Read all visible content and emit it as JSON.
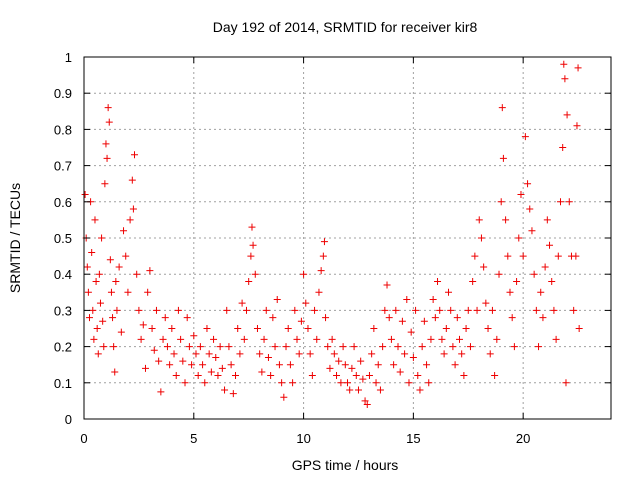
{
  "chart_data": {
    "type": "scatter",
    "title": "Day 192 of 2014, SRMTID for receiver kir8",
    "xlabel": "GPS time / hours",
    "ylabel": "SRMTID / TECUs",
    "xlim": [
      0,
      24
    ],
    "ylim": [
      0,
      1
    ],
    "xticks": [
      0,
      5,
      10,
      15,
      20
    ],
    "xtick_labels": [
      "0",
      "5",
      "10",
      "15",
      "20"
    ],
    "yticks": [
      0,
      0.1,
      0.2,
      0.3,
      0.4,
      0.5,
      0.6,
      0.7,
      0.8,
      0.9,
      1
    ],
    "ytick_labels": [
      "0",
      "0.1",
      "0.2",
      "0.3",
      "0.4",
      "0.5",
      "0.6",
      "0.7",
      "0.8",
      "0.9",
      "1"
    ],
    "grid": true,
    "marker": "+",
    "color": "#ee0000",
    "series": [
      {
        "name": "SRMTID",
        "points": [
          [
            0.05,
            0.62
          ],
          [
            0.1,
            0.5
          ],
          [
            0.15,
            0.42
          ],
          [
            0.2,
            0.35
          ],
          [
            0.25,
            0.28
          ],
          [
            0.3,
            0.6
          ],
          [
            0.35,
            0.46
          ],
          [
            0.4,
            0.3
          ],
          [
            0.45,
            0.22
          ],
          [
            0.5,
            0.55
          ],
          [
            0.55,
            0.38
          ],
          [
            0.6,
            0.25
          ],
          [
            0.65,
            0.18
          ],
          [
            0.7,
            0.4
          ],
          [
            0.75,
            0.32
          ],
          [
            0.8,
            0.5
          ],
          [
            0.85,
            0.27
          ],
          [
            0.9,
            0.2
          ],
          [
            0.95,
            0.65
          ],
          [
            1.0,
            0.76
          ],
          [
            1.05,
            0.72
          ],
          [
            1.1,
            0.86
          ],
          [
            1.15,
            0.82
          ],
          [
            1.2,
            0.44
          ],
          [
            1.25,
            0.35
          ],
          [
            1.3,
            0.28
          ],
          [
            1.35,
            0.2
          ],
          [
            1.4,
            0.13
          ],
          [
            1.45,
            0.38
          ],
          [
            1.5,
            0.3
          ],
          [
            1.6,
            0.42
          ],
          [
            1.7,
            0.24
          ],
          [
            1.8,
            0.52
          ],
          [
            1.9,
            0.45
          ],
          [
            2.0,
            0.35
          ],
          [
            2.1,
            0.55
          ],
          [
            2.2,
            0.66
          ],
          [
            2.25,
            0.58
          ],
          [
            2.3,
            0.73
          ],
          [
            2.4,
            0.4
          ],
          [
            2.5,
            0.3
          ],
          [
            2.6,
            0.22
          ],
          [
            2.7,
            0.26
          ],
          [
            2.8,
            0.14
          ],
          [
            2.9,
            0.35
          ],
          [
            3.0,
            0.41
          ],
          [
            3.1,
            0.25
          ],
          [
            3.2,
            0.19
          ],
          [
            3.3,
            0.3
          ],
          [
            3.4,
            0.16
          ],
          [
            3.5,
            0.075
          ],
          [
            3.6,
            0.22
          ],
          [
            3.7,
            0.28
          ],
          [
            3.8,
            0.2
          ],
          [
            3.9,
            0.15
          ],
          [
            4.0,
            0.25
          ],
          [
            4.1,
            0.18
          ],
          [
            4.2,
            0.12
          ],
          [
            4.3,
            0.3
          ],
          [
            4.4,
            0.22
          ],
          [
            4.5,
            0.16
          ],
          [
            4.6,
            0.1
          ],
          [
            4.7,
            0.28
          ],
          [
            4.8,
            0.2
          ],
          [
            4.9,
            0.15
          ],
          [
            5.0,
            0.23
          ],
          [
            5.1,
            0.18
          ],
          [
            5.2,
            0.12
          ],
          [
            5.3,
            0.2
          ],
          [
            5.4,
            0.15
          ],
          [
            5.5,
            0.1
          ],
          [
            5.6,
            0.25
          ],
          [
            5.7,
            0.18
          ],
          [
            5.8,
            0.13
          ],
          [
            5.9,
            0.22
          ],
          [
            6.0,
            0.17
          ],
          [
            6.1,
            0.12
          ],
          [
            6.2,
            0.2
          ],
          [
            6.3,
            0.14
          ],
          [
            6.4,
            0.08
          ],
          [
            6.5,
            0.3
          ],
          [
            6.6,
            0.2
          ],
          [
            6.7,
            0.15
          ],
          [
            6.8,
            0.07
          ],
          [
            6.9,
            0.12
          ],
          [
            7.0,
            0.25
          ],
          [
            7.1,
            0.18
          ],
          [
            7.2,
            0.32
          ],
          [
            7.3,
            0.22
          ],
          [
            7.4,
            0.3
          ],
          [
            7.5,
            0.38
          ],
          [
            7.6,
            0.45
          ],
          [
            7.65,
            0.53
          ],
          [
            7.7,
            0.48
          ],
          [
            7.8,
            0.4
          ],
          [
            7.9,
            0.25
          ],
          [
            8.0,
            0.18
          ],
          [
            8.1,
            0.13
          ],
          [
            8.2,
            0.22
          ],
          [
            8.3,
            0.3
          ],
          [
            8.4,
            0.17
          ],
          [
            8.5,
            0.12
          ],
          [
            8.6,
            0.28
          ],
          [
            8.7,
            0.2
          ],
          [
            8.8,
            0.33
          ],
          [
            8.9,
            0.15
          ],
          [
            9.0,
            0.1
          ],
          [
            9.1,
            0.06
          ],
          [
            9.2,
            0.2
          ],
          [
            9.3,
            0.25
          ],
          [
            9.4,
            0.15
          ],
          [
            9.5,
            0.1
          ],
          [
            9.6,
            0.3
          ],
          [
            9.7,
            0.22
          ],
          [
            9.8,
            0.18
          ],
          [
            9.9,
            0.27
          ],
          [
            10.0,
            0.4
          ],
          [
            10.1,
            0.32
          ],
          [
            10.2,
            0.25
          ],
          [
            10.3,
            0.18
          ],
          [
            10.4,
            0.12
          ],
          [
            10.5,
            0.3
          ],
          [
            10.6,
            0.22
          ],
          [
            10.7,
            0.35
          ],
          [
            10.8,
            0.41
          ],
          [
            10.9,
            0.45
          ],
          [
            10.95,
            0.49
          ],
          [
            11.0,
            0.28
          ],
          [
            11.1,
            0.2
          ],
          [
            11.2,
            0.14
          ],
          [
            11.3,
            0.22
          ],
          [
            11.4,
            0.18
          ],
          [
            11.5,
            0.12
          ],
          [
            11.6,
            0.16
          ],
          [
            11.7,
            0.1
          ],
          [
            11.8,
            0.2
          ],
          [
            11.9,
            0.15
          ],
          [
            12.0,
            0.1
          ],
          [
            12.1,
            0.08
          ],
          [
            12.2,
            0.14
          ],
          [
            12.3,
            0.2
          ],
          [
            12.4,
            0.12
          ],
          [
            12.5,
            0.08
          ],
          [
            12.6,
            0.16
          ],
          [
            12.7,
            0.11
          ],
          [
            12.8,
            0.05
          ],
          [
            12.9,
            0.04
          ],
          [
            13.0,
            0.12
          ],
          [
            13.1,
            0.18
          ],
          [
            13.2,
            0.25
          ],
          [
            13.3,
            0.1
          ],
          [
            13.4,
            0.15
          ],
          [
            13.5,
            0.08
          ],
          [
            13.6,
            0.2
          ],
          [
            13.7,
            0.3
          ],
          [
            13.8,
            0.37
          ],
          [
            13.9,
            0.28
          ],
          [
            14.0,
            0.22
          ],
          [
            14.1,
            0.15
          ],
          [
            14.2,
            0.3
          ],
          [
            14.3,
            0.2
          ],
          [
            14.4,
            0.13
          ],
          [
            14.5,
            0.27
          ],
          [
            14.6,
            0.18
          ],
          [
            14.7,
            0.33
          ],
          [
            14.8,
            0.1
          ],
          [
            14.9,
            0.24
          ],
          [
            15.0,
            0.17
          ],
          [
            15.1,
            0.3
          ],
          [
            15.2,
            0.12
          ],
          [
            15.3,
            0.08
          ],
          [
            15.4,
            0.2
          ],
          [
            15.5,
            0.27
          ],
          [
            15.6,
            0.15
          ],
          [
            15.7,
            0.1
          ],
          [
            15.8,
            0.22
          ],
          [
            15.9,
            0.33
          ],
          [
            16.0,
            0.28
          ],
          [
            16.1,
            0.38
          ],
          [
            16.2,
            0.3
          ],
          [
            16.3,
            0.22
          ],
          [
            16.4,
            0.18
          ],
          [
            16.5,
            0.25
          ],
          [
            16.6,
            0.35
          ],
          [
            16.7,
            0.3
          ],
          [
            16.8,
            0.2
          ],
          [
            16.9,
            0.15
          ],
          [
            17.0,
            0.28
          ],
          [
            17.1,
            0.22
          ],
          [
            17.2,
            0.18
          ],
          [
            17.3,
            0.12
          ],
          [
            17.4,
            0.25
          ],
          [
            17.5,
            0.3
          ],
          [
            17.6,
            0.2
          ],
          [
            17.7,
            0.38
          ],
          [
            17.8,
            0.45
          ],
          [
            17.9,
            0.3
          ],
          [
            18.0,
            0.55
          ],
          [
            18.1,
            0.5
          ],
          [
            18.2,
            0.42
          ],
          [
            18.3,
            0.32
          ],
          [
            18.4,
            0.25
          ],
          [
            18.5,
            0.18
          ],
          [
            18.6,
            0.3
          ],
          [
            18.7,
            0.12
          ],
          [
            18.8,
            0.22
          ],
          [
            18.9,
            0.4
          ],
          [
            19.0,
            0.6
          ],
          [
            19.05,
            0.86
          ],
          [
            19.1,
            0.72
          ],
          [
            19.2,
            0.55
          ],
          [
            19.3,
            0.45
          ],
          [
            19.4,
            0.35
          ],
          [
            19.5,
            0.28
          ],
          [
            19.6,
            0.2
          ],
          [
            19.7,
            0.38
          ],
          [
            19.8,
            0.5
          ],
          [
            19.9,
            0.62
          ],
          [
            20.0,
            0.45
          ],
          [
            20.1,
            0.78
          ],
          [
            20.2,
            0.65
          ],
          [
            20.3,
            0.58
          ],
          [
            20.4,
            0.52
          ],
          [
            20.5,
            0.4
          ],
          [
            20.6,
            0.3
          ],
          [
            20.7,
            0.2
          ],
          [
            20.8,
            0.35
          ],
          [
            20.9,
            0.28
          ],
          [
            21.0,
            0.42
          ],
          [
            21.1,
            0.55
          ],
          [
            21.2,
            0.48
          ],
          [
            21.3,
            0.38
          ],
          [
            21.4,
            0.3
          ],
          [
            21.5,
            0.22
          ],
          [
            21.6,
            0.45
          ],
          [
            21.7,
            0.6
          ],
          [
            21.8,
            0.75
          ],
          [
            21.85,
            0.98
          ],
          [
            21.9,
            0.94
          ],
          [
            22.0,
            0.84
          ],
          [
            22.1,
            0.6
          ],
          [
            22.2,
            0.45
          ],
          [
            22.3,
            0.3
          ],
          [
            22.4,
            0.45
          ],
          [
            22.45,
            0.81
          ],
          [
            22.5,
            0.97
          ],
          [
            22.55,
            0.25
          ],
          [
            21.95,
            0.1
          ]
        ]
      }
    ]
  }
}
